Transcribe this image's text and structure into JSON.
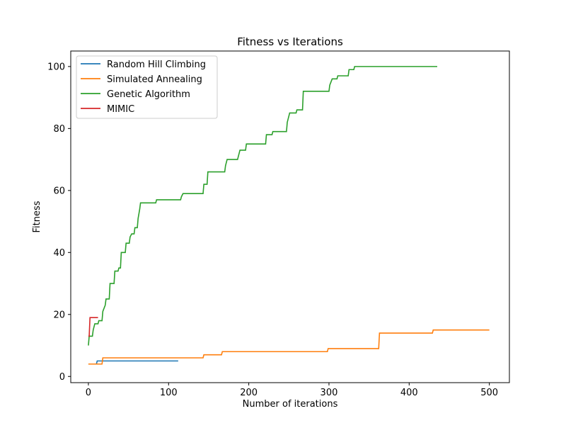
{
  "chart_data": {
    "type": "line",
    "title": "Fitness vs Iterations",
    "xlabel": "Number of iterations",
    "ylabel": "Fitness",
    "xlim": [
      -22,
      525
    ],
    "ylim": [
      -2,
      105
    ],
    "xticks": [
      0,
      100,
      200,
      300,
      400,
      500
    ],
    "yticks": [
      0,
      20,
      40,
      60,
      80,
      100
    ],
    "grid": false,
    "legend_position": "top-left",
    "series": [
      {
        "name": "Random Hill Climbing",
        "color": "#1f77b4",
        "step": true,
        "points": [
          [
            0,
            4
          ],
          [
            10,
            4
          ],
          [
            11,
            5
          ],
          [
            112,
            5
          ]
        ]
      },
      {
        "name": "Simulated Annealing",
        "color": "#ff7f0e",
        "step": true,
        "points": [
          [
            0,
            4
          ],
          [
            17,
            4
          ],
          [
            18,
            6
          ],
          [
            143,
            6
          ],
          [
            144,
            7
          ],
          [
            166,
            7
          ],
          [
            167,
            8
          ],
          [
            298,
            8
          ],
          [
            299,
            9
          ],
          [
            362,
            9
          ],
          [
            363,
            14
          ],
          [
            429,
            14
          ],
          [
            430,
            15
          ],
          [
            500,
            15
          ]
        ]
      },
      {
        "name": "Genetic Algorithm",
        "color": "#2ca02c",
        "step": true,
        "points": [
          [
            0,
            10
          ],
          [
            1,
            13
          ],
          [
            5,
            13
          ],
          [
            6,
            15
          ],
          [
            8,
            17
          ],
          [
            12,
            17
          ],
          [
            13,
            18
          ],
          [
            17,
            18
          ],
          [
            18,
            21
          ],
          [
            21,
            23
          ],
          [
            22,
            25
          ],
          [
            26,
            25
          ],
          [
            27,
            30
          ],
          [
            32,
            30
          ],
          [
            33,
            34
          ],
          [
            37,
            34
          ],
          [
            38,
            35
          ],
          [
            40,
            35
          ],
          [
            41,
            40
          ],
          [
            46,
            40
          ],
          [
            47,
            43
          ],
          [
            51,
            43
          ],
          [
            52,
            45
          ],
          [
            54,
            46
          ],
          [
            57,
            46
          ],
          [
            58,
            48
          ],
          [
            61,
            48
          ],
          [
            62,
            51
          ],
          [
            64,
            54
          ],
          [
            65,
            56
          ],
          [
            84,
            56
          ],
          [
            85,
            57
          ],
          [
            115,
            57
          ],
          [
            116,
            58
          ],
          [
            118,
            59
          ],
          [
            143,
            59
          ],
          [
            144,
            62
          ],
          [
            148,
            62
          ],
          [
            149,
            66
          ],
          [
            170,
            66
          ],
          [
            171,
            68
          ],
          [
            173,
            70
          ],
          [
            186,
            70
          ],
          [
            187,
            71
          ],
          [
            189,
            73
          ],
          [
            196,
            73
          ],
          [
            197,
            75
          ],
          [
            221,
            75
          ],
          [
            222,
            78
          ],
          [
            229,
            78
          ],
          [
            230,
            79
          ],
          [
            247,
            79
          ],
          [
            248,
            82
          ],
          [
            251,
            85
          ],
          [
            259,
            85
          ],
          [
            260,
            86
          ],
          [
            267,
            86
          ],
          [
            268,
            92
          ],
          [
            300,
            92
          ],
          [
            301,
            94
          ],
          [
            304,
            96
          ],
          [
            310,
            96
          ],
          [
            311,
            97
          ],
          [
            324,
            97
          ],
          [
            325,
            99
          ],
          [
            331,
            99
          ],
          [
            332,
            100
          ],
          [
            435,
            100
          ]
        ]
      },
      {
        "name": "MIMIC",
        "color": "#d62728",
        "step": true,
        "points": [
          [
            0,
            13
          ],
          [
            1,
            13
          ],
          [
            2,
            19
          ],
          [
            12,
            19
          ]
        ]
      }
    ]
  }
}
